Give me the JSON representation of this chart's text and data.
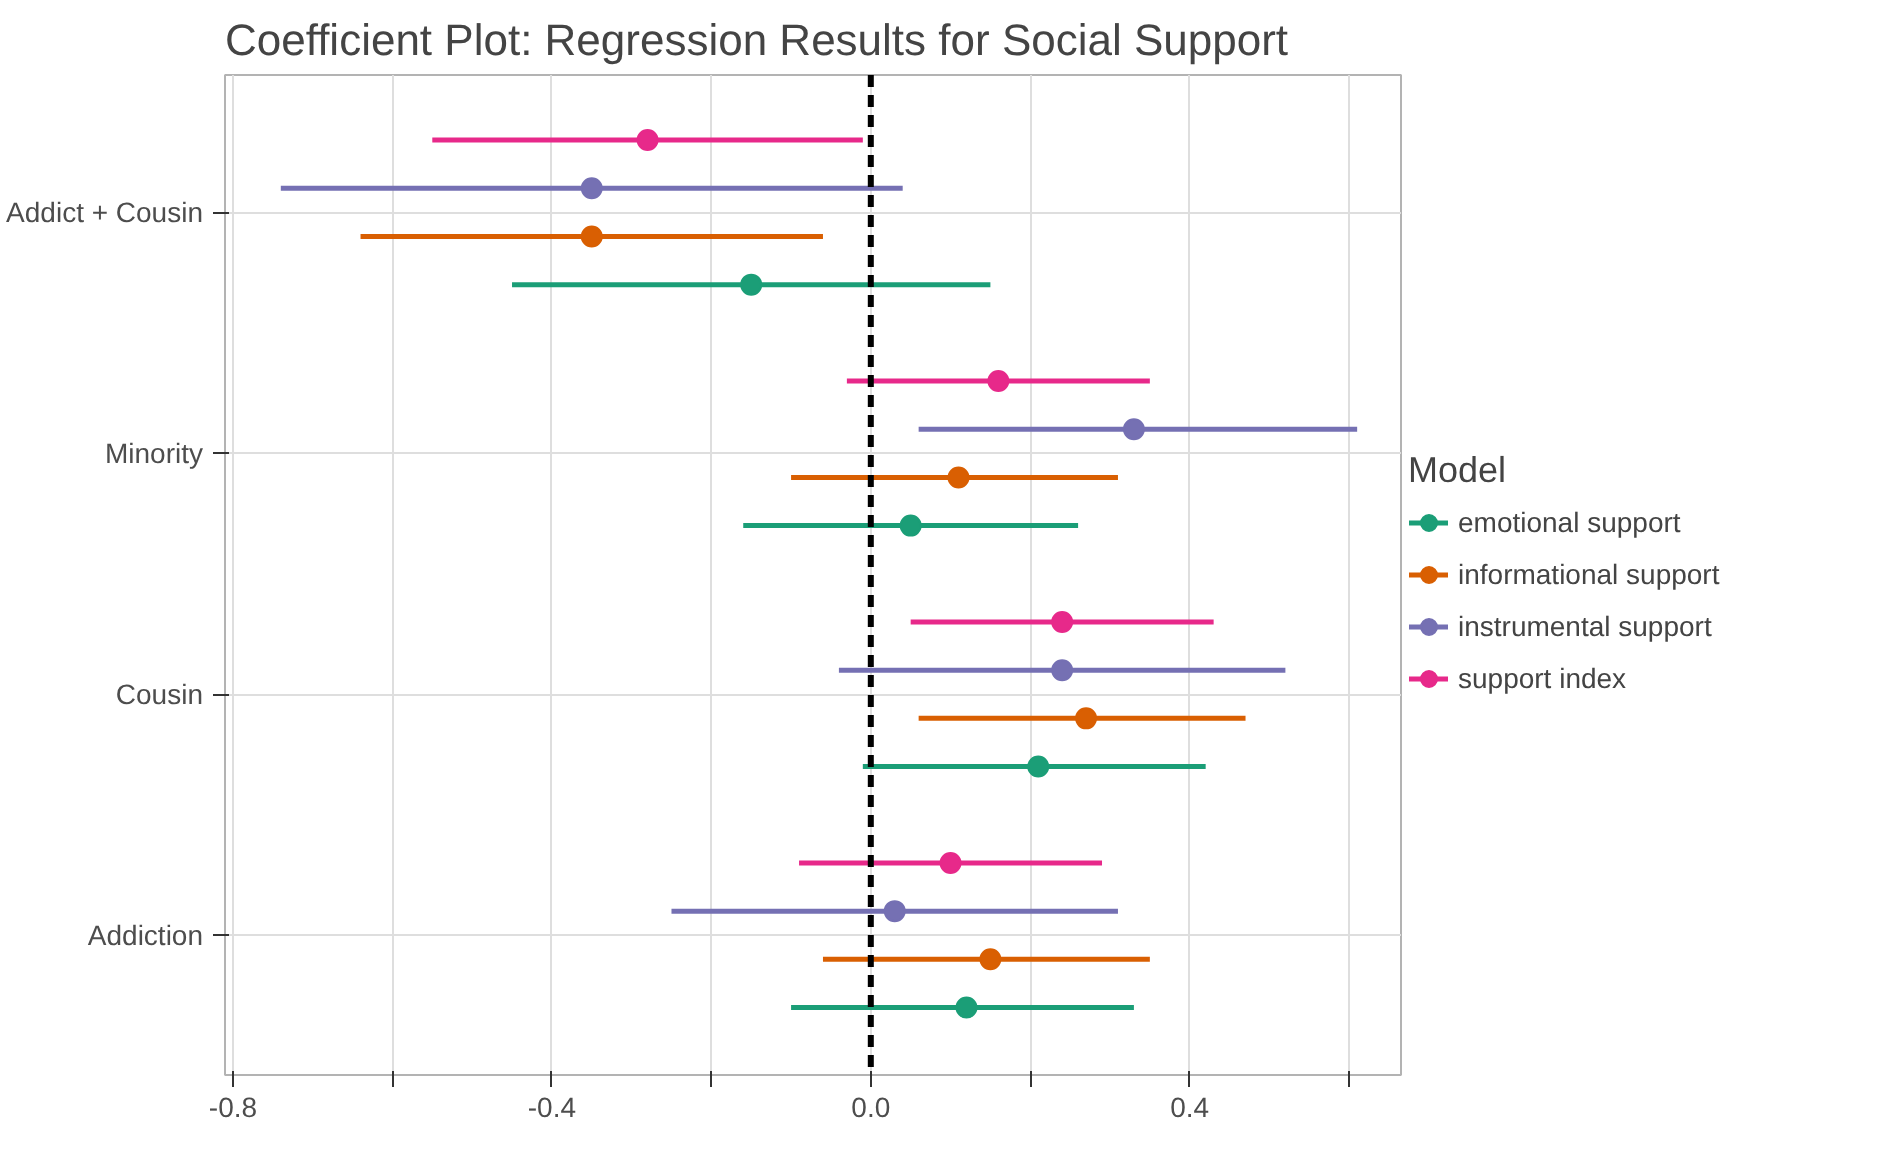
{
  "chart_data": {
    "type": "scatter",
    "title": "Coefficient Plot: Regression Results for Social Support",
    "legend_title": "Model",
    "orientation": "horizontal",
    "categories": [
      "Addict + Cousin",
      "Minority",
      "Cousin",
      "Addiction"
    ],
    "series": [
      {
        "name": "emotional support",
        "color": "#1b9e77",
        "values": [
          -0.15,
          0.05,
          0.21,
          0.12
        ],
        "errors": [
          [
            -0.45,
            0.15
          ],
          [
            -0.16,
            0.26
          ],
          [
            -0.01,
            0.42
          ],
          [
            -0.1,
            0.33
          ]
        ]
      },
      {
        "name": "informational support",
        "color": "#d95f02",
        "values": [
          -0.35,
          0.11,
          0.27,
          0.15
        ],
        "errors": [
          [
            -0.64,
            -0.06
          ],
          [
            -0.1,
            0.31
          ],
          [
            0.06,
            0.47
          ],
          [
            -0.06,
            0.35
          ]
        ]
      },
      {
        "name": "instrumental support",
        "color": "#7570b3",
        "values": [
          -0.35,
          0.33,
          0.24,
          0.03
        ],
        "errors": [
          [
            -0.74,
            0.04
          ],
          [
            0.06,
            0.61
          ],
          [
            -0.04,
            0.52
          ],
          [
            -0.25,
            0.31
          ]
        ]
      },
      {
        "name": "support index",
        "color": "#e7298a",
        "values": [
          -0.28,
          0.16,
          0.24,
          0.1
        ],
        "errors": [
          [
            -0.55,
            -0.01
          ],
          [
            -0.03,
            0.35
          ],
          [
            0.05,
            0.43
          ],
          [
            -0.09,
            0.29
          ]
        ]
      }
    ],
    "xlim": [
      -0.81,
      0.665
    ],
    "xticks": [
      {
        "value": -0.8,
        "label": "-0.8"
      },
      {
        "value": -0.6,
        "label": null
      },
      {
        "value": -0.4,
        "label": "-0.4"
      },
      {
        "value": -0.2,
        "label": null
      },
      {
        "value": 0,
        "label": "0.0"
      },
      {
        "value": 0.2,
        "label": null
      },
      {
        "value": 0.4,
        "label": "0.4"
      },
      {
        "value": 0.6,
        "label": null
      }
    ],
    "ref_lines": [
      {
        "axis": "x",
        "value": 0,
        "color": "#000000",
        "line_style": "dashed"
      }
    ],
    "grid": true,
    "legend": "right",
    "marker": "circle"
  }
}
